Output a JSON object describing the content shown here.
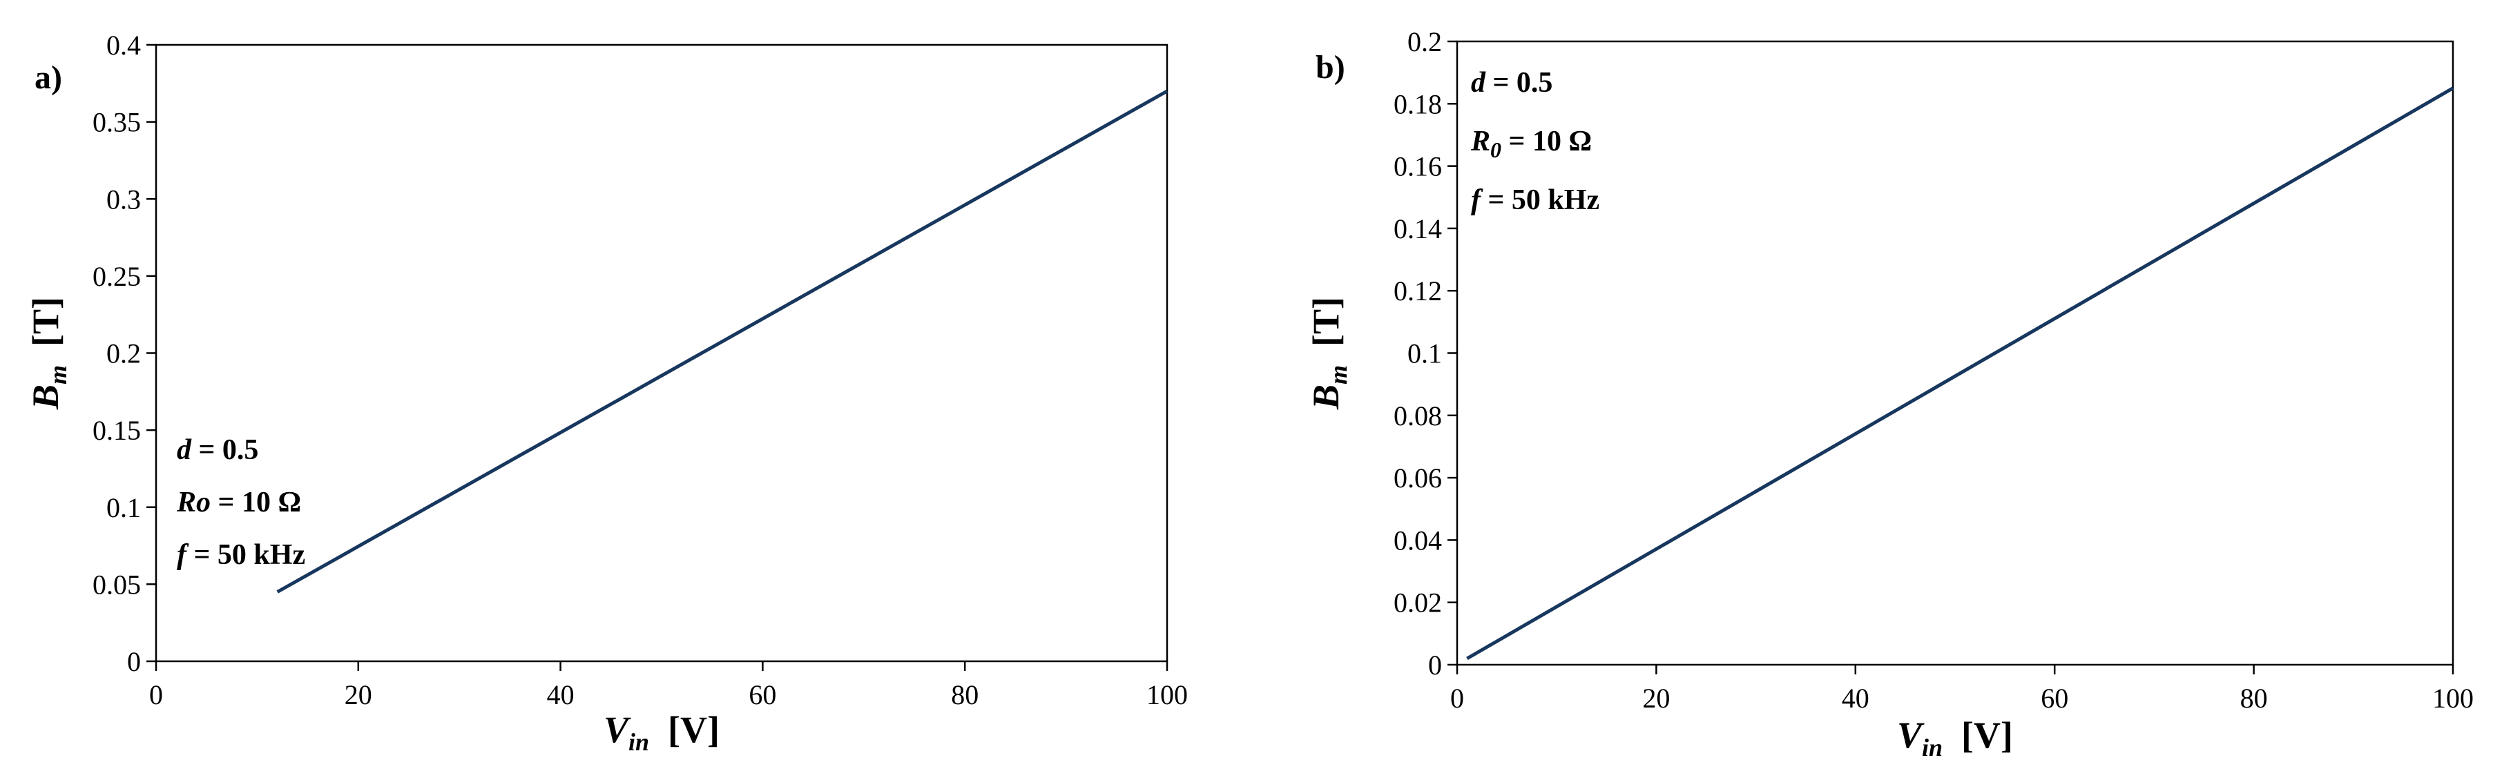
{
  "chart_data": [
    {
      "type": "line",
      "panel_label": "a)",
      "xlabel_main": "V",
      "xlabel_sub": "in",
      "xlabel_unit": "[V]",
      "ylabel_main": "B",
      "ylabel_sub": "m",
      "ylabel_unit": "[T]",
      "xlim": [
        0,
        100
      ],
      "ylim": [
        0,
        0.4
      ],
      "x_ticks": [
        "0",
        "20",
        "40",
        "60",
        "80",
        "100"
      ],
      "x_tick_values": [
        0,
        20,
        40,
        60,
        80,
        100
      ],
      "y_ticks": [
        "0",
        "0.05",
        "0.1",
        "0.15",
        "0.2",
        "0.25",
        "0.3",
        "0.35",
        "0.4"
      ],
      "y_tick_values": [
        0,
        0.05,
        0.1,
        0.15,
        0.2,
        0.25,
        0.3,
        0.35,
        0.4
      ],
      "grid": false,
      "legend": "none",
      "series": [
        {
          "x": [
            12,
            100
          ],
          "y": [
            0.045,
            0.37
          ],
          "color": "#17375e"
        }
      ],
      "annotations": [
        {
          "var": "d",
          "sub": "",
          "rest": " = 0.5"
        },
        {
          "var": "Ro",
          "sub": "",
          "rest": " = 10 Ω"
        },
        {
          "var": "f",
          "sub": "",
          "rest": " = 50 kHz"
        }
      ],
      "annotation_position": "bottom-left"
    },
    {
      "type": "line",
      "panel_label": "b)",
      "xlabel_main": "V",
      "xlabel_sub": "in",
      "xlabel_unit": "[V]",
      "ylabel_main": "B",
      "ylabel_sub": "m",
      "ylabel_unit": "[T]",
      "xlim": [
        0,
        100
      ],
      "ylim": [
        0,
        0.2
      ],
      "x_ticks": [
        "0",
        "20",
        "40",
        "60",
        "80",
        "100"
      ],
      "x_tick_values": [
        0,
        20,
        40,
        60,
        80,
        100
      ],
      "y_ticks": [
        "0",
        "0.02",
        "0.04",
        "0.06",
        "0.08",
        "0.1",
        "0.12",
        "0.14",
        "0.16",
        "0.18",
        "0.2"
      ],
      "y_tick_values": [
        0,
        0.02,
        0.04,
        0.06,
        0.08,
        0.1,
        0.12,
        0.14,
        0.16,
        0.18,
        0.2
      ],
      "grid": false,
      "legend": "none",
      "series": [
        {
          "x": [
            1,
            100
          ],
          "y": [
            0.002,
            0.185
          ],
          "color": "#17375e"
        }
      ],
      "annotations": [
        {
          "var": "d",
          "sub": "",
          "rest": " = 0.5"
        },
        {
          "var": "R",
          "sub": "0",
          "rest": " = 10 Ω"
        },
        {
          "var": "f",
          "sub": "",
          "rest": " = 50 kHz"
        }
      ],
      "annotation_position": "top-left"
    }
  ]
}
